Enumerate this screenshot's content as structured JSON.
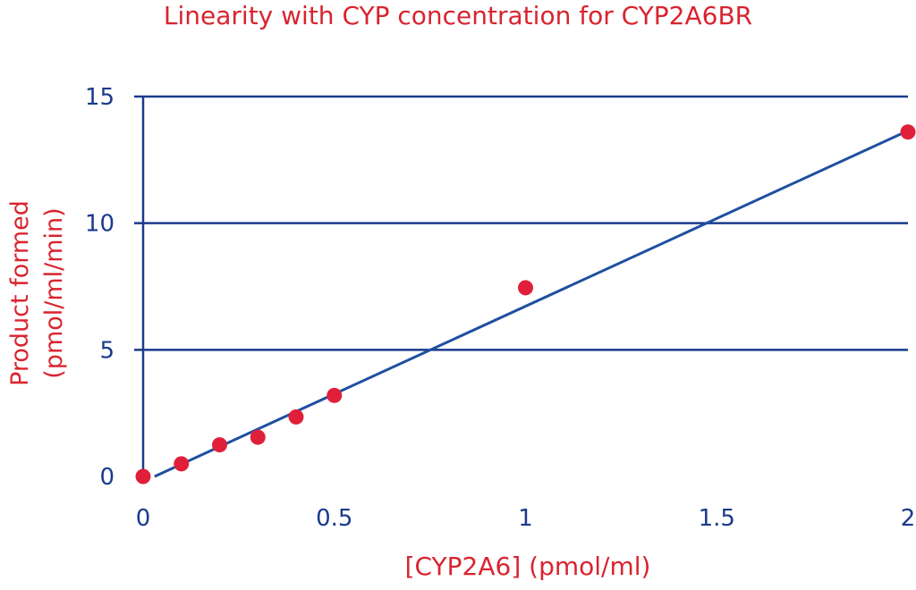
{
  "colors": {
    "axis": "#1a3a8c",
    "grid": "#1a3a8c",
    "line": "#1f4fa0",
    "point": "#e0203a",
    "text_red": "#d8242f"
  },
  "chart_data": {
    "type": "scatter",
    "title": "Linearity with CYP concentration for CYP2A6BR",
    "xlabel": "[CYP2A6] (pmol/ml)",
    "ylabel_line1": "Product formed",
    "ylabel_line2": "(pmol/ml/min)",
    "xlim": [
      0,
      2
    ],
    "ylim": [
      0,
      15
    ],
    "x_ticks": [
      "0",
      "0.5",
      "1",
      "1.5",
      "2"
    ],
    "y_ticks": [
      "0",
      "5",
      "10",
      "15"
    ],
    "grid": "horizontal",
    "series": [
      {
        "points": [
          {
            "x": 0,
            "y": 0.0
          },
          {
            "x": 0.1,
            "y": 0.5
          },
          {
            "x": 0.2,
            "y": 1.25
          },
          {
            "x": 0.3,
            "y": 1.55
          },
          {
            "x": 0.4,
            "y": 2.35
          },
          {
            "x": 0.5,
            "y": 3.2
          },
          {
            "x": 1.0,
            "y": 7.45
          },
          {
            "x": 2.0,
            "y": 13.6
          }
        ]
      }
    ],
    "trendline": [
      {
        "x": 0.03,
        "y": 0.0
      },
      {
        "x": 2.0,
        "y": 13.65
      }
    ]
  }
}
